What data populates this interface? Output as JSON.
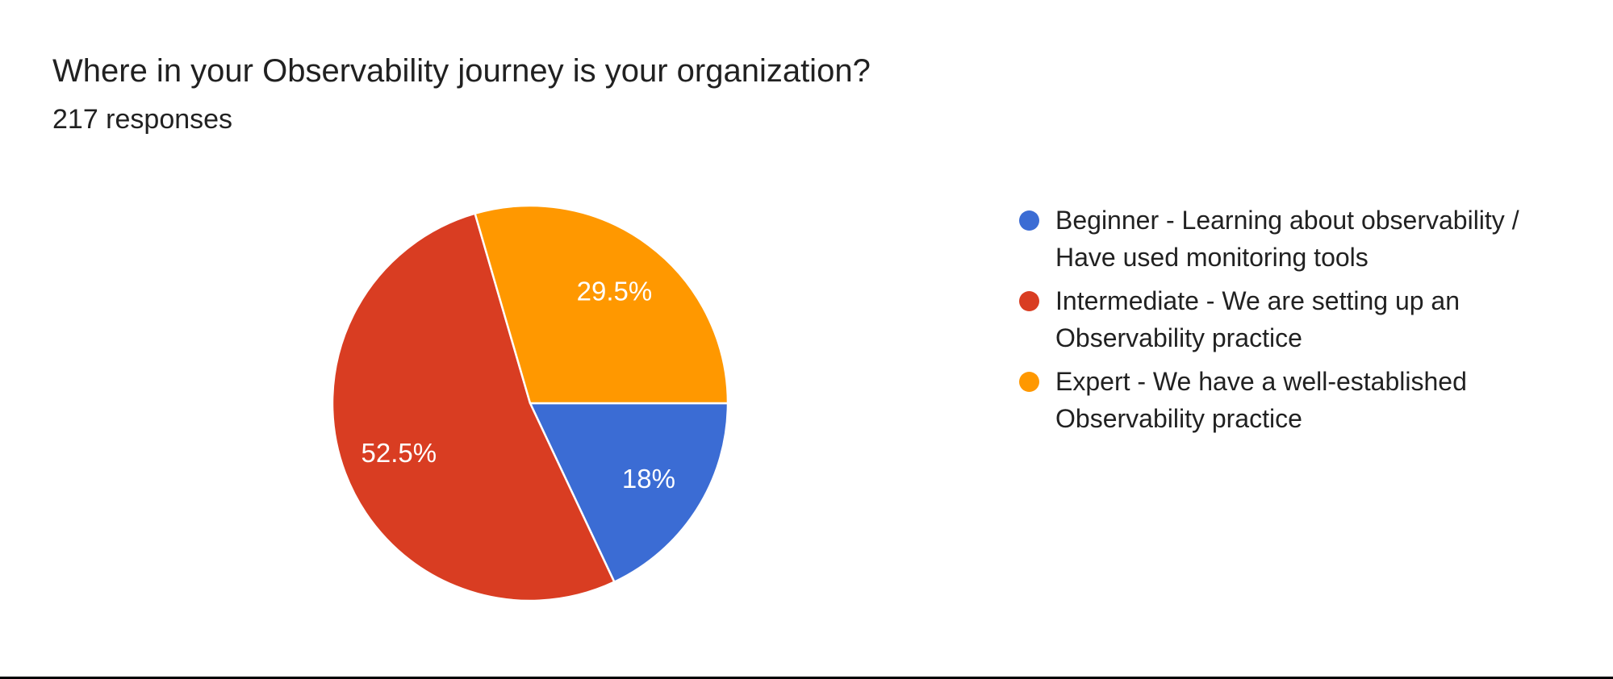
{
  "header": {
    "title": "Where in your Observability journey is your organization?",
    "responses_count": "217 responses"
  },
  "chart_data": {
    "type": "pie",
    "title": "Where in your Observability journey is your organization?",
    "responses_total": 217,
    "categories": [
      "Beginner - Learning about observability / Have used monitoring tools",
      "Intermediate - We are setting up an Observability practice",
      "Expert - We have a well-established Observability practice"
    ],
    "values": [
      18,
      52.5,
      29.5
    ],
    "slice_labels": [
      "18%",
      "52.5%",
      "29.5%"
    ],
    "colors": [
      "#3B6CD4",
      "#D93D22",
      "#FF9800"
    ],
    "start_angle_deg": 0,
    "direction": "clockwise",
    "legend_position": "right",
    "slice_label_color": "#ffffff",
    "slice_border_color": "#ffffff"
  },
  "legend": {
    "items": [
      {
        "label": "Beginner - Learning about observability /\nHave used monitoring tools",
        "color": "#3B6CD4"
      },
      {
        "label": "Intermediate - We are setting up an\nObservability practice",
        "color": "#D93D22"
      },
      {
        "label": "Expert - We have a well-established\nObservability practice",
        "color": "#FF9800"
      }
    ]
  }
}
